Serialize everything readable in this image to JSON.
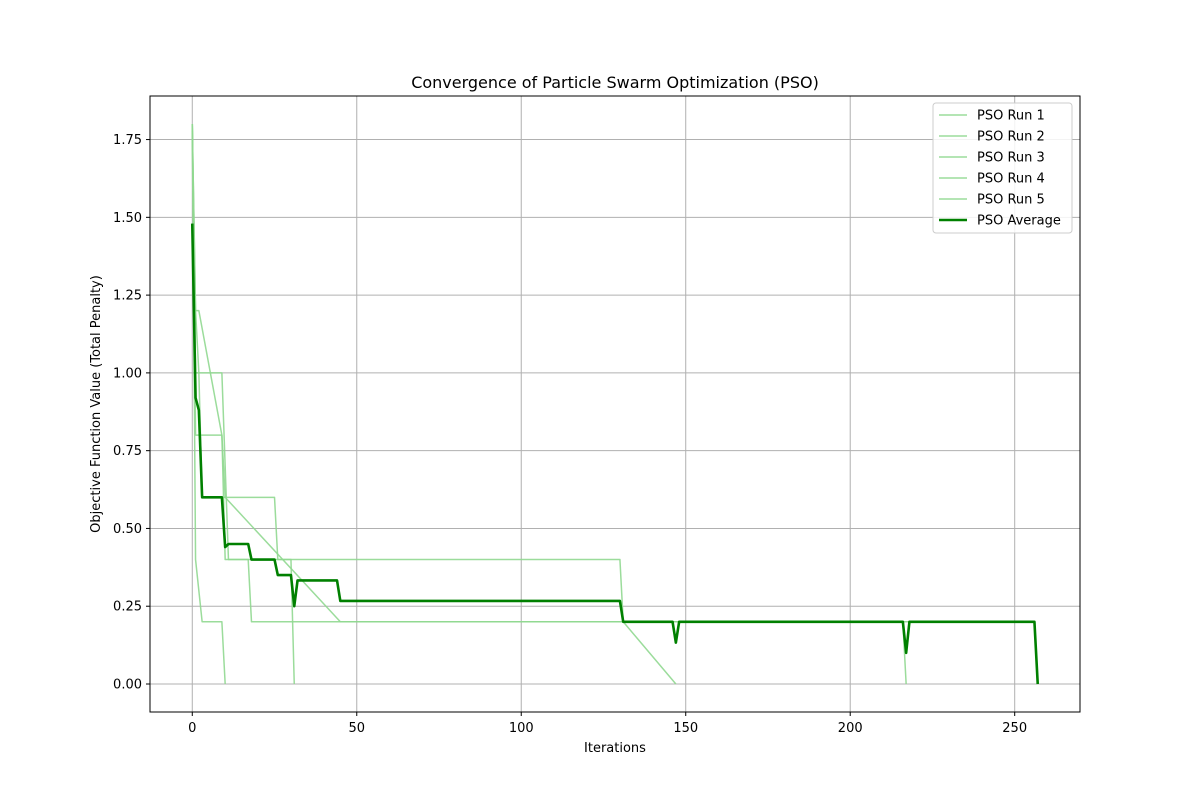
{
  "chart_data": {
    "type": "line",
    "title": "Convergence of Particle Swarm Optimization (PSO)",
    "xlabel": "Iterations",
    "ylabel": "Objective Function Value (Total Penalty)",
    "xlim": [
      -12.85,
      269.85
    ],
    "ylim": [
      -0.09,
      1.89
    ],
    "xticks": [
      0,
      50,
      100,
      150,
      200,
      250
    ],
    "xtick_labels": [
      "0",
      "50",
      "100",
      "150",
      "200",
      "250"
    ],
    "yticks": [
      0.0,
      0.25,
      0.5,
      0.75,
      1.0,
      1.25,
      1.5,
      1.75
    ],
    "ytick_labels": [
      "0.00",
      "0.25",
      "0.50",
      "0.75",
      "1.00",
      "1.25",
      "1.50",
      "1.75"
    ],
    "grid": true,
    "legend_position": "top-right",
    "series": [
      {
        "name": "PSO Run 1",
        "color": "#90d890",
        "width": 1.5,
        "opacity": 0.9,
        "x": [
          0,
          1,
          2,
          9,
          10,
          18,
          130,
          131,
          147
        ],
        "y": [
          1.8,
          1.2,
          1.2,
          0.8,
          0.4,
          0.4,
          0.4,
          0.2,
          0.0
        ]
      },
      {
        "name": "PSO Run 2",
        "color": "#90d890",
        "width": 1.5,
        "opacity": 0.9,
        "x": [
          0,
          1,
          3,
          9,
          10
        ],
        "y": [
          1.8,
          0.4,
          0.2,
          0.2,
          0.0
        ]
      },
      {
        "name": "PSO Run 3",
        "color": "#90d890",
        "width": 1.5,
        "opacity": 0.9,
        "x": [
          0,
          1,
          3,
          9,
          11,
          17,
          18,
          44,
          45,
          216,
          217
        ],
        "y": [
          1.8,
          1.0,
          1.0,
          1.0,
          0.4,
          0.4,
          0.2,
          0.2,
          0.2,
          0.2,
          0.0
        ]
      },
      {
        "name": "PSO Run 4",
        "color": "#90d890",
        "width": 1.5,
        "opacity": 0.9,
        "x": [
          0,
          1,
          9,
          10,
          45,
          256,
          257
        ],
        "y": [
          1.8,
          0.8,
          0.8,
          0.6,
          0.2,
          0.2,
          0.0
        ]
      },
      {
        "name": "PSO Run 5",
        "color": "#90d890",
        "width": 1.5,
        "opacity": 0.9,
        "x": [
          0,
          1,
          2,
          3,
          25,
          26,
          30,
          31
        ],
        "y": [
          1.8,
          1.2,
          1.0,
          0.6,
          0.6,
          0.4,
          0.4,
          0.0
        ]
      },
      {
        "name": "PSO Average",
        "color": "#008000",
        "width": 2.6,
        "opacity": 1.0,
        "x": [
          0,
          1,
          2,
          3,
          9,
          10,
          11,
          17,
          18,
          25,
          26,
          30,
          31,
          32,
          44,
          45,
          130,
          131,
          146,
          147,
          148,
          216,
          217,
          218,
          256,
          257
        ],
        "y": [
          1.48,
          0.92,
          0.88,
          0.6,
          0.6,
          0.44,
          0.45,
          0.45,
          0.4,
          0.4,
          0.35,
          0.35,
          0.25,
          0.333,
          0.333,
          0.267,
          0.267,
          0.2,
          0.2,
          0.133,
          0.2,
          0.2,
          0.1,
          0.2,
          0.2,
          0.0
        ]
      }
    ]
  }
}
